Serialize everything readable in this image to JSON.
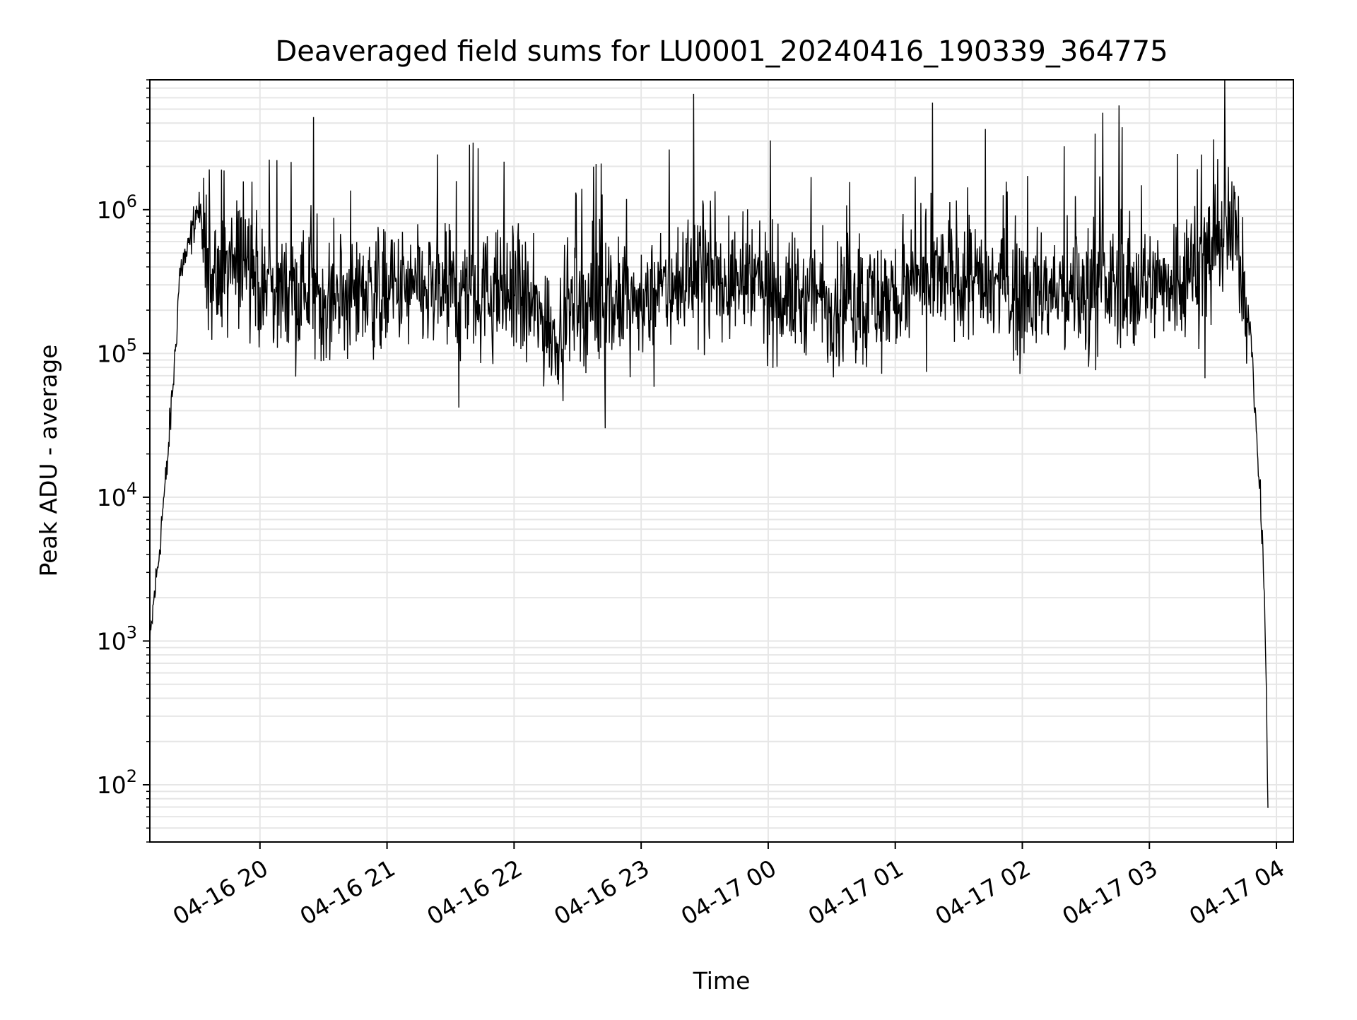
{
  "chart_data": {
    "type": "line",
    "title": "Deaveraged field sums for LU0001_20240416_190339_364775",
    "xlabel": "Time",
    "ylabel": "Peak ADU - average",
    "yscale": "log",
    "xlim": [
      "2024-04-16 19:08",
      "2024-04-17 04:08"
    ],
    "ylim": [
      40,
      8000000
    ],
    "grid": "both-major-and-minor",
    "line_color": "#000000",
    "x_tick_labels": [
      "04-16 20",
      "04-16 21",
      "04-16 22",
      "04-16 23",
      "04-17 00",
      "04-17 01",
      "04-17 02",
      "04-17 03",
      "04-17 04"
    ],
    "y_ticks": [
      {
        "value": 100,
        "base": "10",
        "exp": "2"
      },
      {
        "value": 1000,
        "base": "10",
        "exp": "3"
      },
      {
        "value": 10000,
        "base": "10",
        "exp": "4"
      },
      {
        "value": 100000,
        "base": "10",
        "exp": "5"
      },
      {
        "value": 1000000,
        "base": "10",
        "exp": "6"
      }
    ],
    "series": [
      {
        "x": [
          "2024-04-16 19:08",
          "2024-04-16 19:10",
          "2024-04-16 19:12",
          "2024-04-16 19:14",
          "2024-04-16 19:16",
          "2024-04-16 19:18",
          "2024-04-16 19:20",
          "2024-04-16 19:22",
          "2024-04-16 19:24",
          "2024-04-16 19:26",
          "2024-04-16 19:28",
          "2024-04-16 19:30",
          "2024-04-16 19:32",
          "2024-04-16 19:35",
          "2024-04-16 19:40",
          "2024-04-16 19:45",
          "2024-04-16 19:50",
          "2024-04-16 19:55",
          "2024-04-16 20:00",
          "2024-04-16 20:30",
          "2024-04-16 21:00",
          "2024-04-16 21:30",
          "2024-04-16 22:00",
          "2024-04-16 22:20",
          "2024-04-16 22:30",
          "2024-04-16 23:00",
          "2024-04-16 23:30",
          "2024-04-17 00:00",
          "2024-04-17 00:30",
          "2024-04-17 01:00",
          "2024-04-17 01:30",
          "2024-04-17 02:00",
          "2024-04-17 02:30",
          "2024-04-17 03:00",
          "2024-04-17 03:20",
          "2024-04-17 03:30",
          "2024-04-17 03:35",
          "2024-04-17 03:40",
          "2024-04-17 03:42",
          "2024-04-17 03:45",
          "2024-04-17 03:48",
          "2024-04-17 03:50",
          "2024-04-17 03:52",
          "2024-04-17 03:54",
          "2024-04-17 03:55",
          "2024-04-17 03:56"
        ],
        "y": [
          900,
          2000,
          3500,
          8000,
          15000,
          40000,
          100000,
          350000,
          450000,
          500000,
          700000,
          1000000,
          900000,
          400000,
          300000,
          350000,
          450000,
          500000,
          280000,
          270000,
          270000,
          260000,
          260000,
          140000,
          220000,
          220000,
          380000,
          260000,
          230000,
          240000,
          380000,
          250000,
          280000,
          300000,
          380000,
          600000,
          700000,
          650000,
          500000,
          280000,
          120000,
          40000,
          12000,
          3000,
          800,
          60
        ]
      }
    ]
  }
}
